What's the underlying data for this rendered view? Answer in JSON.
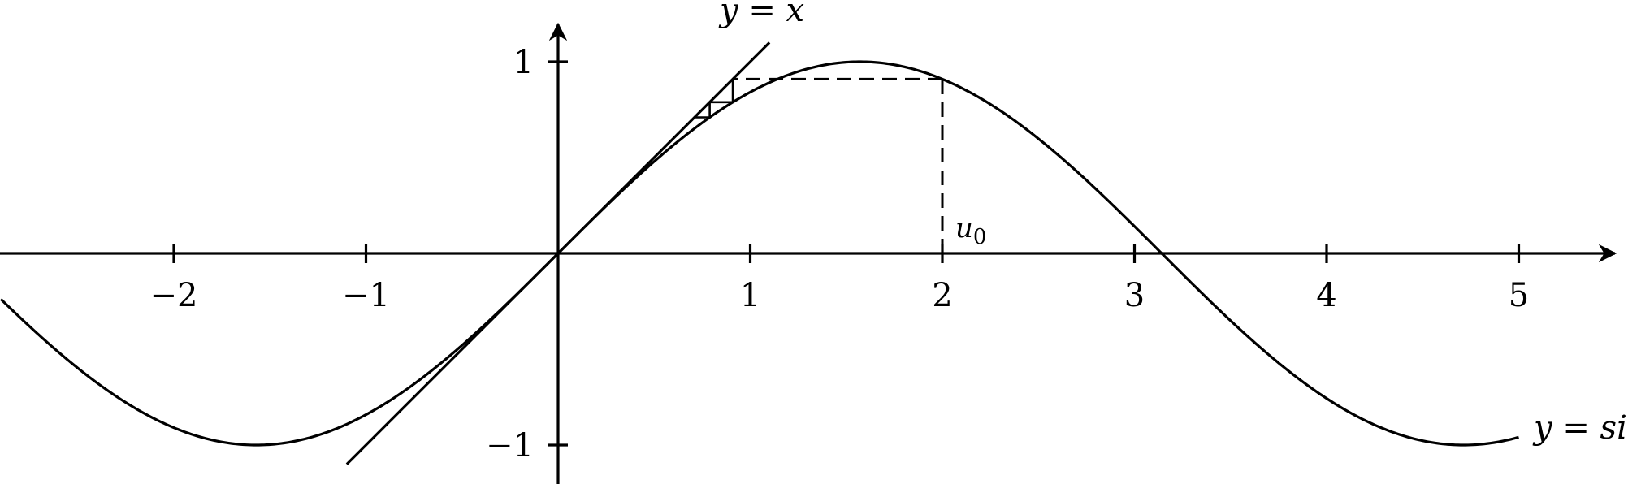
{
  "chart_data": {
    "type": "line",
    "title": "",
    "xlabel": "",
    "ylabel": "",
    "xlim": [
      -2.9,
      5.5
    ],
    "ylim": [
      -1.2,
      1.2
    ],
    "grid": false,
    "x_ticks": [
      "−2",
      "−1",
      "1",
      "2",
      "3",
      "4",
      "5"
    ],
    "x_tick_values": [
      -2,
      -1,
      1,
      2,
      3,
      4,
      5
    ],
    "y_ticks": [
      "1",
      "−1"
    ],
    "y_tick_values": [
      1,
      -1
    ],
    "series": [
      {
        "name": "y = sin x",
        "function": "sin",
        "x_range": [
          -2.9,
          5.0
        ]
      },
      {
        "name": "y = x",
        "function": "identity",
        "x_range": [
          -1.1,
          1.1
        ]
      }
    ],
    "iteration": {
      "start_label": "u0",
      "u0": 2,
      "steps": 3
    },
    "annotations": {
      "identity_label": "y = x",
      "sine_label": "y = si",
      "start_label_text": "u0"
    },
    "colors": {
      "line": "#000000",
      "background": "#ffffff"
    }
  }
}
